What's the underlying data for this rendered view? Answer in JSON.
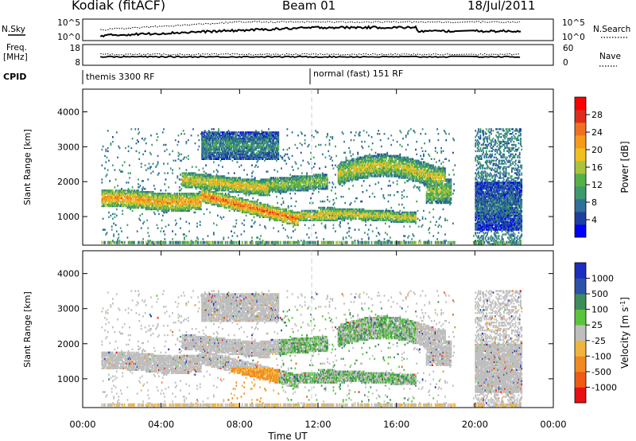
{
  "header": {
    "radar": "Kodiak (fitACF)",
    "beam": "Beam 01",
    "date": "18/Jul/2011"
  },
  "strip": {
    "nsky_label": "N.Sky",
    "nsky_ticks": [
      "10^5",
      "10^0"
    ],
    "nsearch_ticks": [
      "10^5",
      "10^0"
    ],
    "nsearch_label": "N.Search",
    "freq_label_1": "Freq.",
    "freq_label_2": "[MHz]",
    "freq_ticks": [
      "18",
      "8"
    ],
    "nave_ticks": [
      "60",
      "0"
    ],
    "nave_label": "Nave",
    "cpid_label": "CPID",
    "cpid_1": "themis 3300 RF",
    "cpid_2": "normal (fast) 151 RF"
  },
  "chart_data": [
    {
      "type": "heatmap",
      "panel": "power",
      "ylabel": "Slant Range [km]",
      "xlabel": "",
      "x_ticks": [
        "00:00",
        "04:00",
        "08:00",
        "12:00",
        "16:00",
        "20:00",
        "00:00"
      ],
      "x_hours": [
        0,
        4,
        8,
        12,
        16,
        20,
        24
      ],
      "y_ticks": [
        "4000",
        "3000",
        "2000",
        "1000"
      ],
      "y_values": [
        4000,
        3000,
        2000,
        1000
      ],
      "ylim": [
        180,
        4650
      ],
      "xlim_hours": [
        0,
        24
      ],
      "colorbar": {
        "label": "Power [dB]",
        "ticks": [
          "28",
          "24",
          "20",
          "16",
          "12",
          "8",
          "4"
        ],
        "tick_values": [
          28,
          24,
          20,
          16,
          12,
          8,
          4
        ],
        "range": [
          0,
          30
        ],
        "colors": [
          "#0000ff",
          "#1e3fa0",
          "#2f6f9a",
          "#3d9a6a",
          "#55b047",
          "#a9c43a",
          "#f0c01e",
          "#f59a1a",
          "#f07020",
          "#e02d1a",
          "#ff0000"
        ]
      }
    },
    {
      "type": "heatmap",
      "panel": "velocity",
      "ylabel": "Slant Range [km]",
      "xlabel": "Time UT",
      "x_ticks": [
        "00:00",
        "04:00",
        "08:00",
        "12:00",
        "16:00",
        "20:00",
        "00:00"
      ],
      "x_hours": [
        0,
        4,
        8,
        12,
        16,
        20,
        24
      ],
      "y_ticks": [
        "4000",
        "3000",
        "2000",
        "1000"
      ],
      "y_values": [
        4000,
        3000,
        2000,
        1000
      ],
      "ylim": [
        180,
        4650
      ],
      "xlim_hours": [
        0,
        24
      ],
      "colorbar": {
        "label": "Velocity [m s",
        "label_sup": "-1",
        "label_end": "]",
        "ticks": [
          "1000",
          "500",
          "100",
          "25",
          "-25",
          "-100",
          "-500",
          "-1000"
        ],
        "colors": [
          "#1a2fc0",
          "#2a52a8",
          "#3c8d5a",
          "#5ac43a",
          "#bebebe",
          "#f0b43c",
          "#f08a1e",
          "#f05a14",
          "#e81010"
        ]
      }
    }
  ]
}
